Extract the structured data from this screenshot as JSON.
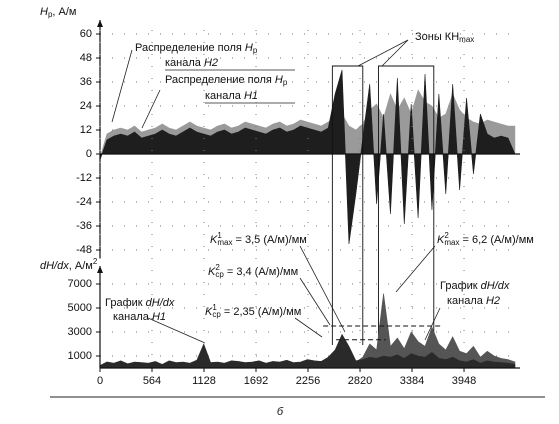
{
  "chart_data": [
    {
      "type": "area",
      "y_label": [
        {
          "text": "H",
          "italic": true
        },
        {
          "text": "р",
          "shift": "sub"
        },
        {
          "text": ", А/м"
        }
      ],
      "x": [
        0,
        75,
        150,
        225,
        300,
        375,
        450,
        525,
        600,
        675,
        750,
        825,
        900,
        975,
        1050,
        1125,
        1200,
        1275,
        1350,
        1425,
        1500,
        1575,
        1650,
        1725,
        1800,
        1875,
        1950,
        2025,
        2100,
        2175,
        2250,
        2325,
        2400,
        2475,
        2550,
        2625,
        2700,
        2775,
        2850,
        2925,
        3000,
        3075,
        3150,
        3225,
        3300,
        3375,
        3450,
        3525,
        3600,
        3675,
        3750,
        3825,
        3900,
        3975,
        4050,
        4125,
        4200,
        4275,
        4350,
        4425,
        4500
      ],
      "series": [
        {
          "name": "H2",
          "color": "#9a9a9a",
          "values": [
            -2,
            10,
            12,
            13,
            12,
            14,
            11,
            12,
            13,
            15,
            13,
            12,
            14,
            16,
            14,
            13,
            12,
            14,
            15,
            13,
            14,
            16,
            15,
            14,
            13,
            15,
            16,
            14,
            15,
            17,
            16,
            15,
            14,
            16,
            18,
            20,
            14,
            12,
            15,
            22,
            25,
            18,
            30,
            22,
            28,
            20,
            32,
            26,
            24,
            18,
            20,
            30,
            22,
            18,
            16,
            15,
            17,
            16,
            15,
            14,
            14
          ]
        },
        {
          "name": "H1",
          "color": "#1e1e1e",
          "values": [
            -3,
            7,
            9,
            10,
            9,
            11,
            8,
            9,
            10,
            12,
            10,
            9,
            11,
            13,
            11,
            10,
            9,
            11,
            12,
            10,
            11,
            13,
            12,
            11,
            10,
            12,
            13,
            11,
            12,
            14,
            13,
            12,
            11,
            13,
            30,
            42,
            -45,
            -20,
            8,
            35,
            -25,
            20,
            -30,
            38,
            -35,
            25,
            -32,
            40,
            -28,
            30,
            -20,
            35,
            -18,
            28,
            -10,
            20,
            10,
            8,
            9,
            8,
            0
          ]
        }
      ],
      "xlim": [
        0,
        4555
      ],
      "ylim": [
        -52,
        62
      ],
      "yticks": [
        60,
        48,
        36,
        24,
        12,
        0,
        -12,
        -24,
        -36,
        -48
      ],
      "grid": true,
      "zones": [
        [
          2520,
          2850
        ],
        [
          3020,
          3620
        ]
      ],
      "annotations": [
        {
          "lines": [
            [
              {
                "text": "Распределение поля "
              },
              {
                "text": "H",
                "italic": true
              },
              {
                "text": "р",
                "shift": "sub"
              }
            ],
            [
              {
                "text": "канала "
              },
              {
                "text": "H2",
                "italic": true
              }
            ]
          ]
        },
        {
          "lines": [
            [
              {
                "text": "Распределение поля "
              },
              {
                "text": "H",
                "italic": true
              },
              {
                "text": "р",
                "shift": "sub"
              }
            ],
            [
              {
                "text": "канала "
              },
              {
                "text": "H1",
                "italic": true
              }
            ]
          ]
        },
        {
          "lines": [
            [
              {
                "text": "Зоны КН"
              },
              {
                "text": "max",
                "shift": "sub"
              }
            ]
          ]
        }
      ]
    },
    {
      "type": "area",
      "y_label": [
        {
          "text": "dH/dx",
          "italic": true
        },
        {
          "text": ", А/м"
        },
        {
          "text": "2",
          "shift": "sup"
        }
      ],
      "x": [
        0,
        75,
        150,
        225,
        300,
        375,
        450,
        525,
        600,
        675,
        750,
        825,
        900,
        975,
        1050,
        1125,
        1200,
        1275,
        1350,
        1425,
        1500,
        1575,
        1650,
        1725,
        1800,
        1875,
        1950,
        2025,
        2100,
        2175,
        2250,
        2325,
        2400,
        2475,
        2550,
        2625,
        2700,
        2775,
        2850,
        2925,
        3000,
        3075,
        3150,
        3225,
        3300,
        3375,
        3450,
        3525,
        3600,
        3675,
        3750,
        3825,
        3900,
        3975,
        4050,
        4125,
        4200,
        4275,
        4350,
        4425,
        4500
      ],
      "series": [
        {
          "name": "H2",
          "color": "#555555",
          "values": [
            100,
            300,
            250,
            400,
            200,
            350,
            300,
            250,
            400,
            200,
            450,
            300,
            350,
            250,
            500,
            600,
            300,
            350,
            250,
            450,
            400,
            300,
            350,
            450,
            250,
            400,
            350,
            500,
            300,
            350,
            500,
            450,
            400,
            700,
            1200,
            2200,
            1400,
            500,
            900,
            2000,
            1500,
            6200,
            1800,
            2500,
            1600,
            3000,
            2200,
            1800,
            3400,
            2000,
            1500,
            2600,
            1400,
            1200,
            1800,
            900,
            1400,
            1000,
            800,
            700,
            500
          ]
        },
        {
          "name": "H1",
          "color": "#2a2a2a",
          "values": [
            200,
            500,
            400,
            600,
            350,
            500,
            450,
            400,
            550,
            300,
            600,
            450,
            500,
            400,
            650,
            2000,
            450,
            500,
            400,
            600,
            550,
            450,
            500,
            600,
            400,
            550,
            500,
            650,
            450,
            500,
            700,
            600,
            550,
            900,
            1500,
            2800,
            1800,
            600,
            700,
            900,
            800,
            1000,
            900,
            1100,
            800,
            1200,
            1000,
            900,
            1300,
            800,
            700,
            900,
            600,
            500,
            700,
            400,
            600,
            500,
            450,
            400,
            300
          ]
        }
      ],
      "xlim": [
        0,
        4555
      ],
      "ylim": [
        0,
        7500
      ],
      "xticks": [
        0,
        564,
        1128,
        1692,
        2256,
        2820,
        3384,
        3948
      ],
      "yticks": [
        7000,
        5000,
        3000,
        1000
      ],
      "grid": true,
      "reference_lines": [
        {
          "value": 3500
        },
        {
          "value": 2350
        }
      ],
      "annotations": [
        {
          "lines": [
            [
              {
                "text": "K",
                "italic": true
              },
              {
                "text": "1",
                "shift": "sup"
              },
              {
                "text": "max",
                "shift": "sub"
              },
              {
                "text": " = 3,5 (А/м)/мм"
              }
            ]
          ]
        },
        {
          "lines": [
            [
              {
                "text": "K",
                "italic": true
              },
              {
                "text": "2",
                "shift": "sup"
              },
              {
                "text": "ср",
                "shift": "sub"
              },
              {
                "text": " = 3,4 (А/м)/мм"
              }
            ]
          ]
        },
        {
          "lines": [
            [
              {
                "text": "K",
                "italic": true
              },
              {
                "text": "1",
                "shift": "sup"
              },
              {
                "text": "ср",
                "shift": "sub"
              },
              {
                "text": " = 2,35 (А/м)/мм"
              }
            ]
          ]
        },
        {
          "lines": [
            [
              {
                "text": "K",
                "italic": true
              },
              {
                "text": "2",
                "shift": "sup"
              },
              {
                "text": "max",
                "shift": "sub"
              },
              {
                "text": " = 6,2 (А/м)/мм"
              }
            ]
          ]
        },
        {
          "lines": [
            [
              {
                "text": "График "
              },
              {
                "text": "dH/dx",
                "italic": true
              }
            ],
            [
              {
                "text": "канала "
              },
              {
                "text": "H1",
                "italic": true
              }
            ]
          ]
        },
        {
          "lines": [
            [
              {
                "text": "График "
              },
              {
                "text": "dH/dx",
                "italic": true
              }
            ],
            [
              {
                "text": "канала "
              },
              {
                "text": "H2",
                "italic": true
              }
            ]
          ]
        }
      ]
    }
  ],
  "caption": "б"
}
